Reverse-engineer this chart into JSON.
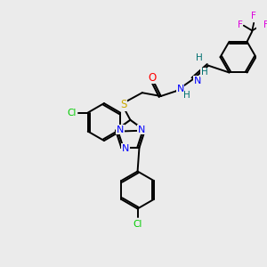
{
  "background_color": "#ebebeb",
  "atom_colors": {
    "C": "#000000",
    "N": "#0000ff",
    "O": "#ff0000",
    "S": "#ccaa00",
    "Cl": "#00cc00",
    "F": "#dd00dd",
    "H": "#007070"
  },
  "figsize": [
    3.0,
    3.0
  ],
  "dpi": 100
}
